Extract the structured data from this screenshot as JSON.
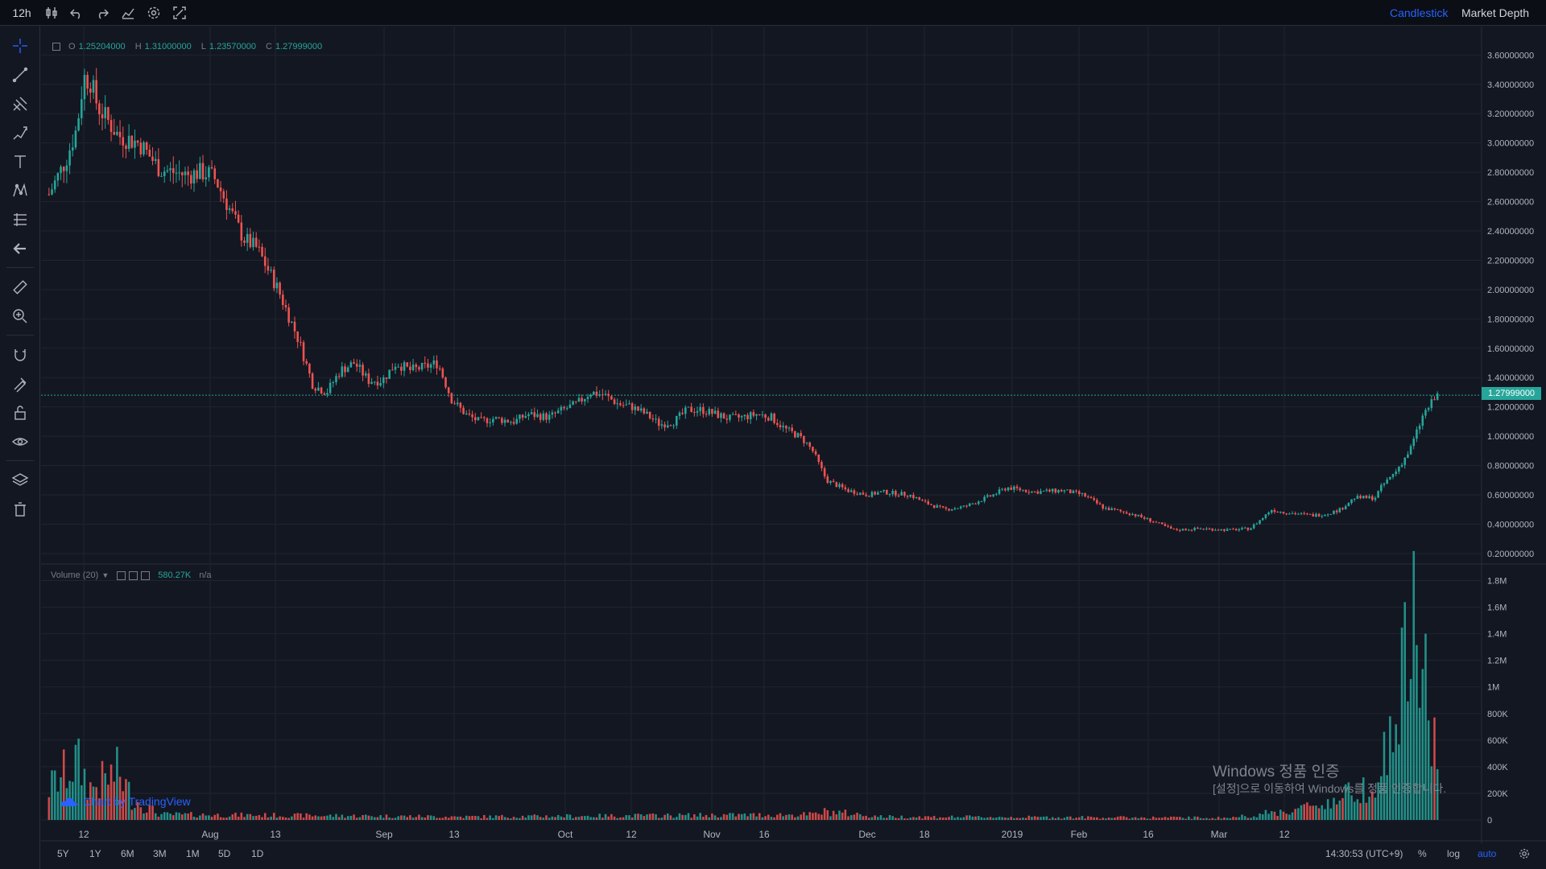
{
  "header": {
    "interval": "12h",
    "chart_types": [
      "Candlestick",
      "Market Depth"
    ],
    "active_chart_type": "Candlestick",
    "icons": [
      "candles-icon",
      "undo-icon",
      "redo-icon",
      "indicators-icon",
      "settings-icon",
      "fullscreen-icon"
    ]
  },
  "left_toolbar": {
    "tools": [
      "crosshair-icon",
      "trend-line-icon",
      "pitchfork-icon",
      "brush-icon",
      "text-icon",
      "pattern-icon",
      "prediction-icon",
      "back-arrow-icon",
      "ruler-icon",
      "zoom-in-icon",
      "magnet-icon",
      "lock-drawings-icon",
      "unlock-icon",
      "eye-icon",
      "layers-icon",
      "trash-icon"
    ]
  },
  "ohlc": {
    "o_label": "O",
    "o": "1.25204000",
    "h_label": "H",
    "h": "1.31000000",
    "l_label": "L",
    "l": "1.23570000",
    "c_label": "C",
    "c": "1.27999000"
  },
  "volume_legend": {
    "name": "Volume (20)",
    "value": "580.27K",
    "extra": "n/a"
  },
  "last_price": "1.27999000",
  "colors": {
    "up": "#26a69a",
    "down": "#ef5350",
    "background": "#131722",
    "grid": "#1f2430",
    "accent": "#2962ff"
  },
  "chart_data": {
    "type": "candlestick",
    "price_axis": {
      "ticks": [
        "3.60000000",
        "3.40000000",
        "3.20000000",
        "3.00000000",
        "2.80000000",
        "2.60000000",
        "2.40000000",
        "2.20000000",
        "2.00000000",
        "1.80000000",
        "1.60000000",
        "1.40000000",
        "1.20000000",
        "1.00000000",
        "0.80000000",
        "0.60000000",
        "0.40000000",
        "0.20000000"
      ],
      "range": [
        0.15,
        3.75
      ]
    },
    "volume_axis": {
      "ticks": [
        "1.8M",
        "1.6M",
        "1.4M",
        "1.2M",
        "1M",
        "800K",
        "600K",
        "400K",
        "200K",
        "0"
      ],
      "range": [
        0,
        1.9
      ]
    },
    "time_axis": {
      "ticks": [
        "12",
        "Aug",
        "13",
        "Sep",
        "13",
        "Oct",
        "12",
        "Nov",
        "16",
        "Dec",
        "18",
        "2019",
        "Feb",
        "16",
        "Mar",
        "12"
      ]
    },
    "price_path": [
      [
        0,
        2.65
      ],
      [
        0.012,
        2.88
      ],
      [
        0.02,
        3.1
      ],
      [
        0.025,
        3.45
      ],
      [
        0.03,
        3.42
      ],
      [
        0.035,
        3.25
      ],
      [
        0.05,
        3.05
      ],
      [
        0.065,
        3.0
      ],
      [
        0.08,
        2.82
      ],
      [
        0.1,
        2.78
      ],
      [
        0.108,
        2.8
      ],
      [
        0.115,
        2.79
      ],
      [
        0.12,
        2.75
      ],
      [
        0.13,
        2.55
      ],
      [
        0.14,
        2.35
      ],
      [
        0.15,
        2.28
      ],
      [
        0.165,
        2.0
      ],
      [
        0.18,
        1.65
      ],
      [
        0.19,
        1.35
      ],
      [
        0.2,
        1.3
      ],
      [
        0.21,
        1.45
      ],
      [
        0.22,
        1.5
      ],
      [
        0.23,
        1.38
      ],
      [
        0.24,
        1.38
      ],
      [
        0.25,
        1.5
      ],
      [
        0.26,
        1.45
      ],
      [
        0.27,
        1.47
      ],
      [
        0.28,
        1.5
      ],
      [
        0.29,
        1.25
      ],
      [
        0.3,
        1.15
      ],
      [
        0.31,
        1.1
      ],
      [
        0.32,
        1.12
      ],
      [
        0.335,
        1.1
      ],
      [
        0.345,
        1.15
      ],
      [
        0.36,
        1.13
      ],
      [
        0.37,
        1.18
      ],
      [
        0.38,
        1.22
      ],
      [
        0.39,
        1.3
      ],
      [
        0.4,
        1.28
      ],
      [
        0.41,
        1.22
      ],
      [
        0.42,
        1.2
      ],
      [
        0.43,
        1.15
      ],
      [
        0.44,
        1.08
      ],
      [
        0.45,
        1.1
      ],
      [
        0.46,
        1.18
      ],
      [
        0.47,
        1.18
      ],
      [
        0.48,
        1.15
      ],
      [
        0.49,
        1.12
      ],
      [
        0.5,
        1.13
      ],
      [
        0.51,
        1.15
      ],
      [
        0.52,
        1.13
      ],
      [
        0.53,
        1.05
      ],
      [
        0.54,
        1.0
      ],
      [
        0.545,
        0.96
      ],
      [
        0.55,
        0.9
      ],
      [
        0.56,
        0.7
      ],
      [
        0.575,
        0.63
      ],
      [
        0.59,
        0.6
      ],
      [
        0.6,
        0.62
      ],
      [
        0.62,
        0.6
      ],
      [
        0.63,
        0.55
      ],
      [
        0.645,
        0.5
      ],
      [
        0.66,
        0.52
      ],
      [
        0.67,
        0.56
      ],
      [
        0.68,
        0.6
      ],
      [
        0.69,
        0.65
      ],
      [
        0.71,
        0.62
      ],
      [
        0.73,
        0.63
      ],
      [
        0.745,
        0.6
      ],
      [
        0.76,
        0.51
      ],
      [
        0.78,
        0.47
      ],
      [
        0.795,
        0.42
      ],
      [
        0.81,
        0.36
      ],
      [
        0.83,
        0.37
      ],
      [
        0.85,
        0.36
      ],
      [
        0.865,
        0.37
      ],
      [
        0.875,
        0.45
      ],
      [
        0.88,
        0.5
      ],
      [
        0.89,
        0.48
      ],
      [
        0.9,
        0.47
      ],
      [
        0.91,
        0.46
      ],
      [
        0.92,
        0.47
      ],
      [
        0.93,
        0.5
      ],
      [
        0.94,
        0.58
      ],
      [
        0.955,
        0.58
      ],
      [
        0.96,
        0.66
      ],
      [
        0.97,
        0.76
      ],
      [
        0.98,
        0.9
      ],
      [
        0.99,
        1.15
      ],
      [
        1.0,
        1.28
      ]
    ],
    "volume_profile": [
      [
        0,
        0.3
      ],
      [
        0.02,
        0.55
      ],
      [
        0.03,
        0.3
      ],
      [
        0.05,
        0.45
      ],
      [
        0.06,
        0.2
      ],
      [
        0.08,
        0.05
      ],
      [
        0.2,
        0.04
      ],
      [
        0.3,
        0.03
      ],
      [
        0.55,
        0.05
      ],
      [
        0.56,
        0.08
      ],
      [
        0.6,
        0.03
      ],
      [
        0.85,
        0.02
      ],
      [
        0.87,
        0.05
      ],
      [
        0.9,
        0.1
      ],
      [
        0.93,
        0.2
      ],
      [
        0.95,
        0.35
      ],
      [
        0.96,
        0.5
      ],
      [
        0.97,
        0.9
      ],
      [
        0.98,
        1.75
      ],
      [
        0.99,
        1.4
      ],
      [
        1.0,
        0.58
      ]
    ]
  },
  "bottom_bar": {
    "ranges": [
      "5Y",
      "1Y",
      "6M",
      "3M",
      "1M",
      "5D",
      "1D"
    ],
    "time": "14:30:53 (UTC+9)",
    "percent": "%",
    "log": "log",
    "auto": "auto"
  },
  "watermark": {
    "line1": "Windows 정품 인증",
    "line2": "[설정]으로 이동하여 Windows를 정품 인증합니다.",
    "tradingview": "Chart by TradingView"
  }
}
